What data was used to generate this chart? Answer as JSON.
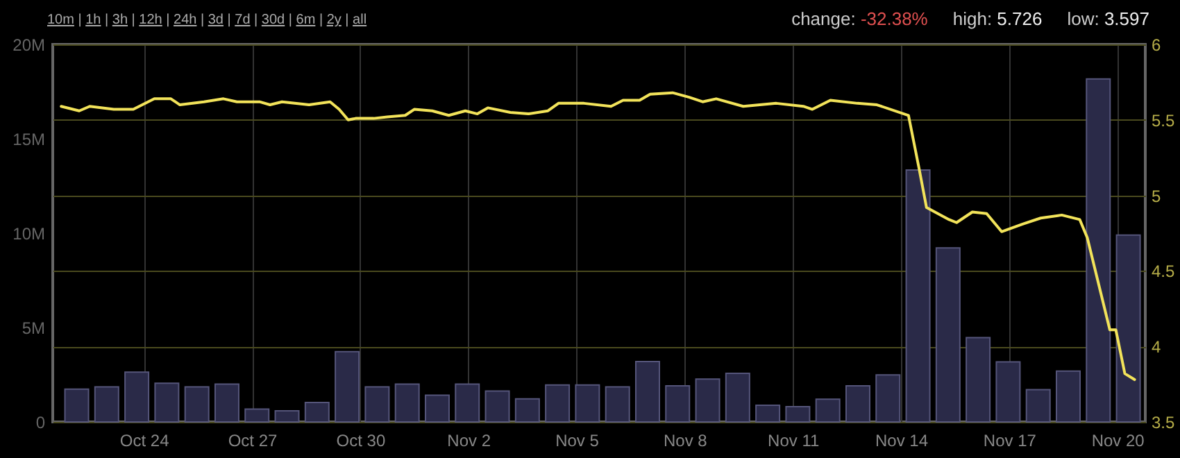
{
  "chart_data": {
    "type": "bar",
    "annotations": [
      "10m | 1h | 3h | 12h | 24h | 3d | 7d | 30d | 6m | 2y | all",
      "change: -32.38%",
      "high: 5.726",
      "low: 3.597"
    ],
    "xlim": [
      "--10-21T16:00",
      "--11-20T14:00"
    ],
    "xticks": [
      {
        "value": "--10-24",
        "label": "Oct 24"
      },
      {
        "value": "--10-27",
        "label": "Oct 27"
      },
      {
        "value": "--10-30",
        "label": "Oct 30"
      },
      {
        "value": "--11-02",
        "label": "Nov 2"
      },
      {
        "value": "--11-05",
        "label": "Nov 5"
      },
      {
        "value": "--11-08",
        "label": "Nov 8"
      },
      {
        "value": "--11-11",
        "label": "Nov 11"
      },
      {
        "value": "--11-14",
        "label": "Nov 14"
      },
      {
        "value": "--11-17",
        "label": "Nov 17"
      },
      {
        "value": "--11-20",
        "label": "Nov 20"
      }
    ],
    "ylim": [
      0,
      20000000
    ],
    "yticks": [
      0,
      {
        "value": 5000000,
        "label": "5M"
      },
      {
        "value": 10000000,
        "label": "10M"
      },
      {
        "value": 15000000,
        "label": "15M"
      },
      {
        "value": 20000000,
        "label": "20M"
      }
    ],
    "y2lim": [
      3.5,
      6
    ],
    "y2ticks": [
      3.5,
      4,
      4.5,
      5,
      5.5,
      6
    ],
    "grid": true,
    "series": [
      {
        "color": "#2a2a48",
        "x": [
          "--10-22T03:20",
          "--10-22T23:20",
          "--10-23T19:20",
          "--10-24T15:20",
          "--10-25T11:20",
          "--10-26T07:20",
          "--10-27T03:20",
          "--10-27T23:20",
          "--10-28T19:20",
          "--10-29T15:20",
          "--10-30T11:20",
          "--10-31T07:20",
          "--11-01T03:20",
          "--11-01T23:20",
          "--11-02T19:20",
          "--11-03T15:20",
          "--11-04T11:20",
          "--11-05T07:20",
          "--11-06T03:20",
          "--11-06T23:20",
          "--11-07T19:20",
          "--11-08T15:20",
          "--11-09T11:20",
          "--11-10T07:20",
          "--11-11T03:20",
          "--11-11T23:20",
          "--11-12T19:20",
          "--11-13T15:20",
          "--11-14T11:20",
          "--11-15T07:20",
          "--11-16T03:20",
          "--11-16T23:20",
          "--11-17T19:20",
          "--11-18T15:20",
          "--11-19T11:20",
          "--11-20T07:20"
        ],
        "values": [
          1740000,
          1860000,
          2640000,
          2050000,
          1860000,
          2000000,
          680000,
          590000,
          1030000,
          3720000,
          1860000,
          2000000,
          1420000,
          2000000,
          1640000,
          1220000,
          1960000,
          1960000,
          1860000,
          3200000,
          1910000,
          2270000,
          2570000,
          880000,
          810000,
          1200000,
          1910000,
          2490000,
          13350000,
          9220000,
          4470000,
          3180000,
          1710000,
          2690000,
          18170000,
          9900000
        ]
      },
      {
        "type": "line",
        "axis": "y2",
        "color": "#f2e35a",
        "x": [
          "--10-21T17:00",
          "--10-22T05:00",
          "--10-22T12:00",
          "--10-23T04:00",
          "--10-23T17:00",
          "--10-24T07:00",
          "--10-24T18:00",
          "--10-25T00:00",
          "--10-25T16:00",
          "--10-26T05:00",
          "--10-26T14:00",
          "--10-27T05:00",
          "--10-27T12:00",
          "--10-27T20:00",
          "--10-28T14:00",
          "--10-29T04:00",
          "--10-29T10:00",
          "--10-29T16:00",
          "--10-29T21:00",
          "--10-30T09:00",
          "--10-30T18:00",
          "--10-31T06:00",
          "--10-31T12:00",
          "--11-01T00:00",
          "--11-01T11:00",
          "--11-01T22:00",
          "--11-02T06:00",
          "--11-02T13:00",
          "--11-03T04:00",
          "--11-03T16:00",
          "--11-04T05:00",
          "--11-04T12:00",
          "--11-05T05:00",
          "--11-05T23:00",
          "--11-06T07:00",
          "--11-06T18:00",
          "--11-07T01:00",
          "--11-07T16:00",
          "--11-08T03:00",
          "--11-08T12:00",
          "--11-08T21:00",
          "--11-09T15:00",
          "--11-10T13:00",
          "--11-11T07:00",
          "--11-11T13:00",
          "--11-12T01:00",
          "--11-12T19:00",
          "--11-13T08:00",
          "--11-14T05:00",
          "--11-14T12:00",
          "--11-14T17:00",
          "--11-15T08:00",
          "--11-15T13:00",
          "--11-15T23:30",
          "--11-16T09:00",
          "--11-16T19:00",
          "--11-17T09:00",
          "--11-17T21:00",
          "--11-18T11:00",
          "--11-18T23:00",
          "--11-19T04:00",
          "--11-19T19:00",
          "--11-19T23:00",
          "--11-20T05:00",
          "--11-20T11:30"
        ],
        "values": [
          5.59,
          5.56,
          5.59,
          5.57,
          5.57,
          5.64,
          5.64,
          5.6,
          5.62,
          5.64,
          5.62,
          5.62,
          5.6,
          5.62,
          5.6,
          5.62,
          5.57,
          5.5,
          5.51,
          5.51,
          5.52,
          5.53,
          5.57,
          5.56,
          5.53,
          5.56,
          5.54,
          5.58,
          5.55,
          5.54,
          5.56,
          5.61,
          5.61,
          5.59,
          5.63,
          5.63,
          5.67,
          5.68,
          5.65,
          5.62,
          5.64,
          5.59,
          5.61,
          5.59,
          5.57,
          5.63,
          5.61,
          5.6,
          5.53,
          5.18,
          4.92,
          4.84,
          4.82,
          4.89,
          4.88,
          4.76,
          4.81,
          4.85,
          4.87,
          4.84,
          4.72,
          4.11,
          4.11,
          3.82,
          3.78
        ]
      }
    ]
  }
}
